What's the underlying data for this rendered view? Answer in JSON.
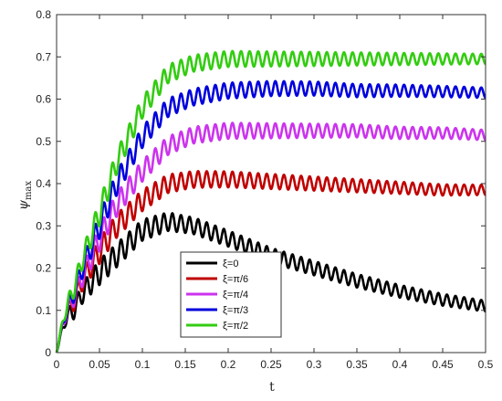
{
  "chart_data": {
    "type": "line",
    "xlabel": "t",
    "ylabel_main": "ψ",
    "ylabel_sub": "max",
    "xlim": [
      0,
      0.5
    ],
    "ylim": [
      0,
      0.8
    ],
    "xticks": [
      0,
      0.05,
      0.1,
      0.15,
      0.2,
      0.25,
      0.3,
      0.35,
      0.4,
      0.45,
      0.5
    ],
    "xtick_labels": [
      "0",
      "0.05",
      "0.1",
      "0.15",
      "0.2",
      "0.25",
      "0.3",
      "0.35",
      "0.4",
      "0.45",
      "0.5"
    ],
    "yticks": [
      0,
      0.1,
      0.2,
      0.3,
      0.4,
      0.5,
      0.6,
      0.7,
      0.8
    ],
    "ytick_labels": [
      "0",
      "0.1",
      "0.2",
      "0.3",
      "0.4",
      "0.5",
      "0.6",
      "0.7",
      "0.8"
    ],
    "legend_position": "lower-center",
    "oscillation_period": 0.01,
    "series": [
      {
        "name": "ξ=0",
        "color": "#000000",
        "envelope": [
          [
            0,
            0
          ],
          [
            0.01,
            0.08
          ],
          [
            0.02,
            0.1
          ],
          [
            0.03,
            0.14
          ],
          [
            0.05,
            0.19
          ],
          [
            0.07,
            0.23
          ],
          [
            0.1,
            0.29
          ],
          [
            0.13,
            0.31
          ],
          [
            0.16,
            0.3
          ],
          [
            0.2,
            0.27
          ],
          [
            0.25,
            0.23
          ],
          [
            0.3,
            0.2
          ],
          [
            0.35,
            0.17
          ],
          [
            0.4,
            0.145
          ],
          [
            0.45,
            0.125
          ],
          [
            0.5,
            0.11
          ]
        ],
        "amplitude": [
          [
            0,
            0.015
          ],
          [
            0.05,
            0.03
          ],
          [
            0.15,
            0.02
          ],
          [
            0.5,
            0.013
          ]
        ]
      },
      {
        "name": "ξ=π/6",
        "color": "#c00000",
        "envelope": [
          [
            0,
            0
          ],
          [
            0.01,
            0.09
          ],
          [
            0.02,
            0.12
          ],
          [
            0.03,
            0.17
          ],
          [
            0.05,
            0.24
          ],
          [
            0.07,
            0.3
          ],
          [
            0.1,
            0.36
          ],
          [
            0.13,
            0.4
          ],
          [
            0.16,
            0.41
          ],
          [
            0.2,
            0.41
          ],
          [
            0.25,
            0.405
          ],
          [
            0.3,
            0.4
          ],
          [
            0.35,
            0.395
          ],
          [
            0.4,
            0.39
          ],
          [
            0.45,
            0.385
          ],
          [
            0.5,
            0.385
          ]
        ],
        "amplitude": [
          [
            0,
            0.015
          ],
          [
            0.05,
            0.03
          ],
          [
            0.15,
            0.02
          ],
          [
            0.5,
            0.012
          ]
        ]
      },
      {
        "name": "ξ=π/4",
        "color": "#cc33ee",
        "envelope": [
          [
            0,
            0
          ],
          [
            0.01,
            0.09
          ],
          [
            0.02,
            0.13
          ],
          [
            0.03,
            0.18
          ],
          [
            0.05,
            0.27
          ],
          [
            0.07,
            0.35
          ],
          [
            0.1,
            0.43
          ],
          [
            0.13,
            0.49
          ],
          [
            0.16,
            0.515
          ],
          [
            0.2,
            0.525
          ],
          [
            0.25,
            0.525
          ],
          [
            0.3,
            0.525
          ],
          [
            0.35,
            0.525
          ],
          [
            0.4,
            0.52
          ],
          [
            0.45,
            0.52
          ],
          [
            0.5,
            0.515
          ]
        ],
        "amplitude": [
          [
            0,
            0.015
          ],
          [
            0.05,
            0.03
          ],
          [
            0.15,
            0.02
          ],
          [
            0.5,
            0.012
          ]
        ]
      },
      {
        "name": "ξ=π/3",
        "color": "#0000dd",
        "envelope": [
          [
            0,
            0
          ],
          [
            0.01,
            0.095
          ],
          [
            0.02,
            0.14
          ],
          [
            0.03,
            0.2
          ],
          [
            0.05,
            0.3
          ],
          [
            0.07,
            0.4
          ],
          [
            0.1,
            0.51
          ],
          [
            0.13,
            0.58
          ],
          [
            0.16,
            0.605
          ],
          [
            0.2,
            0.62
          ],
          [
            0.25,
            0.625
          ],
          [
            0.3,
            0.625
          ],
          [
            0.35,
            0.62
          ],
          [
            0.4,
            0.62
          ],
          [
            0.45,
            0.618
          ],
          [
            0.5,
            0.615
          ]
        ],
        "amplitude": [
          [
            0,
            0.015
          ],
          [
            0.05,
            0.03
          ],
          [
            0.15,
            0.02
          ],
          [
            0.5,
            0.012
          ]
        ]
      },
      {
        "name": "ξ=π/2",
        "color": "#33cc11",
        "envelope": [
          [
            0,
            0
          ],
          [
            0.01,
            0.1
          ],
          [
            0.02,
            0.15
          ],
          [
            0.03,
            0.22
          ],
          [
            0.05,
            0.33
          ],
          [
            0.07,
            0.45
          ],
          [
            0.1,
            0.58
          ],
          [
            0.13,
            0.66
          ],
          [
            0.16,
            0.685
          ],
          [
            0.2,
            0.695
          ],
          [
            0.25,
            0.695
          ],
          [
            0.3,
            0.695
          ],
          [
            0.35,
            0.695
          ],
          [
            0.4,
            0.695
          ],
          [
            0.45,
            0.695
          ],
          [
            0.5,
            0.695
          ]
        ],
        "amplitude": [
          [
            0,
            0.015
          ],
          [
            0.05,
            0.03
          ],
          [
            0.15,
            0.02
          ],
          [
            0.5,
            0.012
          ]
        ]
      }
    ]
  }
}
